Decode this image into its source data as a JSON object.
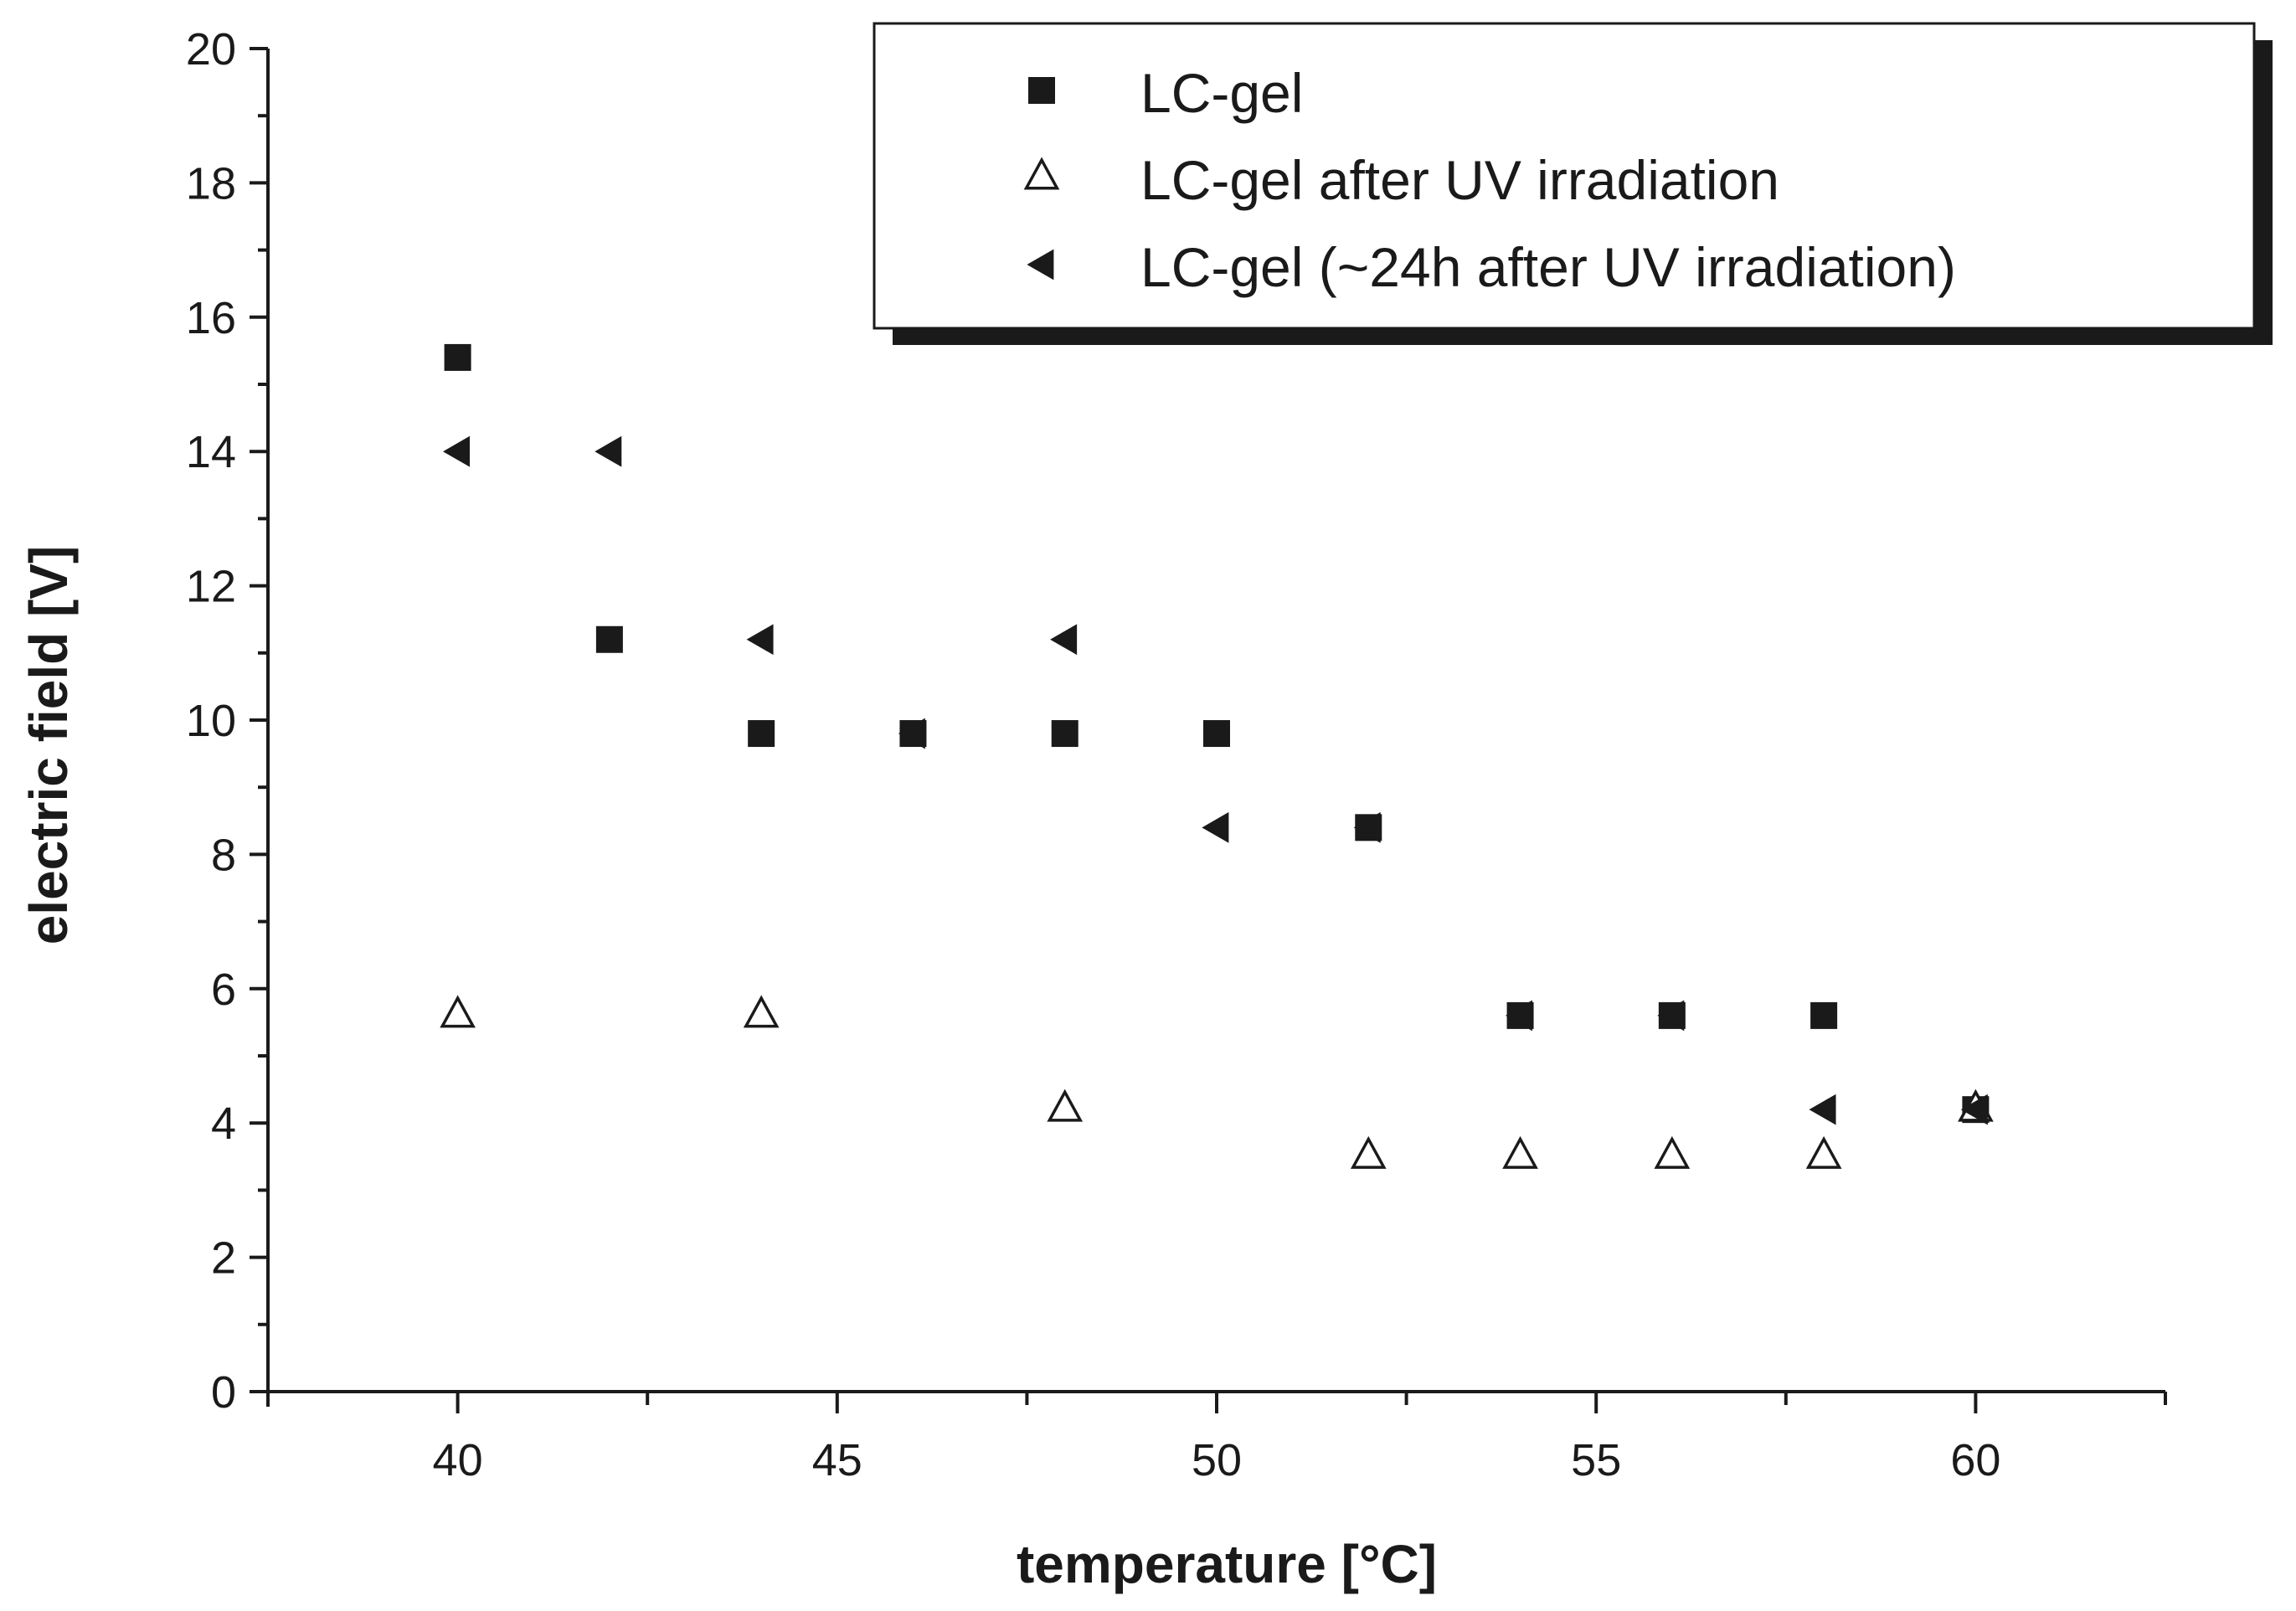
{
  "chart_data": {
    "type": "scatter",
    "title": "",
    "xlabel": "temperature [°C]",
    "ylabel": "electric field [V]",
    "xlim": [
      37.5,
      62.5
    ],
    "ylim": [
      0,
      20
    ],
    "x_ticks": [
      40,
      45,
      50,
      55,
      60
    ],
    "y_ticks": [
      0,
      2,
      4,
      6,
      8,
      10,
      12,
      14,
      16,
      18,
      20
    ],
    "grid": false,
    "legend_position": "top-right",
    "series": [
      {
        "name": "LC-gel",
        "marker": "filled-square",
        "color": "#1a1a1a",
        "points": [
          [
            40,
            15.4
          ],
          [
            42,
            11.2
          ],
          [
            44,
            9.8
          ],
          [
            46,
            9.8
          ],
          [
            48,
            9.8
          ],
          [
            50,
            9.8
          ],
          [
            52,
            8.4
          ],
          [
            54,
            5.6
          ],
          [
            56,
            5.6
          ],
          [
            58,
            5.6
          ],
          [
            60,
            4.2
          ]
        ]
      },
      {
        "name": "LC-gel after UV irradiation",
        "marker": "open-triangle-up",
        "color": "#1a1a1a",
        "points": [
          [
            40,
            5.6
          ],
          [
            44,
            5.6
          ],
          [
            48,
            4.2
          ],
          [
            52,
            3.5
          ],
          [
            54,
            3.5
          ],
          [
            56,
            3.5
          ],
          [
            58,
            3.5
          ],
          [
            60,
            4.2
          ]
        ]
      },
      {
        "name": "LC-gel (~24h after UV irradiation)",
        "marker": "filled-triangle-left",
        "color": "#1a1a1a",
        "points": [
          [
            40,
            14.0
          ],
          [
            42,
            14.0
          ],
          [
            44,
            11.2
          ],
          [
            46,
            9.8
          ],
          [
            48,
            11.2
          ],
          [
            50,
            8.4
          ],
          [
            52,
            8.4
          ],
          [
            54,
            5.6
          ],
          [
            56,
            5.6
          ],
          [
            58,
            4.2
          ],
          [
            60,
            4.2
          ]
        ]
      }
    ]
  }
}
